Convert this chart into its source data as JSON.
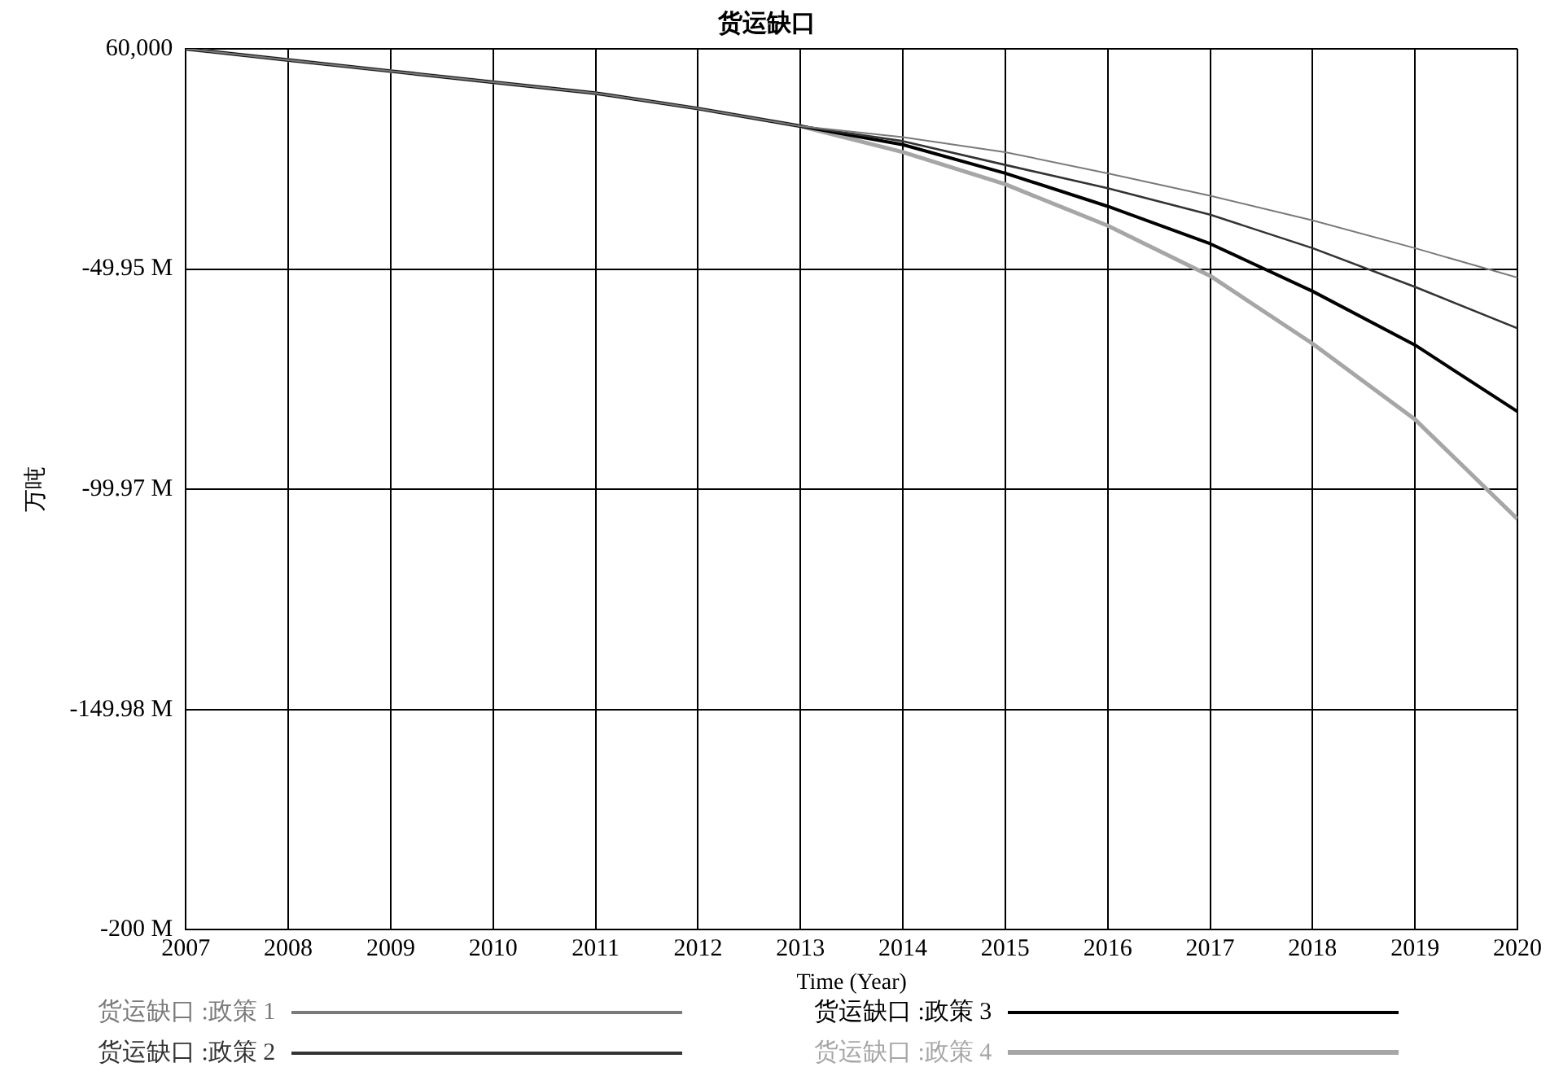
{
  "chart_data": {
    "type": "line",
    "title": "货运缺口",
    "xlabel": "Time (Year)",
    "ylabel": "万吨",
    "x": [
      2007,
      2008,
      2009,
      2010,
      2011,
      2012,
      2013,
      2014,
      2015,
      2016,
      2017,
      2018,
      2019,
      2020
    ],
    "series": [
      {
        "name": "货运缺口 :政策 1",
        "color": "#7a7a7a",
        "values": [
          60000,
          -2500000,
          -5000000,
          -7500000,
          -10000000,
          -13500000,
          -17500000,
          -20000000,
          -23400000,
          -28200000,
          -33300000,
          -38900000,
          -45200000,
          -51900000
        ]
      },
      {
        "name": "货运缺口 :政策 2",
        "color": "#333333",
        "values": [
          60000,
          -2500000,
          -5000000,
          -7500000,
          -10000000,
          -13500000,
          -17500000,
          -20900000,
          -26300000,
          -31600000,
          -37600000,
          -45200000,
          -54000000,
          -63400000
        ]
      },
      {
        "name": "货运缺口 :政策 3",
        "color": "#000000",
        "values": [
          60000,
          -2500000,
          -5000000,
          -7500000,
          -10000000,
          -13500000,
          -17500000,
          -21700000,
          -28200000,
          -35700000,
          -44200000,
          -55000000,
          -67200000,
          -82300000
        ]
      },
      {
        "name": "货运缺口 :政策 4",
        "color": "#a6a6a6",
        "values": [
          60000,
          -2500000,
          -5000000,
          -7500000,
          -10000000,
          -13500000,
          -17500000,
          -23400000,
          -30700000,
          -40100000,
          -51500000,
          -66900000,
          -84100000,
          -106700000
        ]
      }
    ],
    "xlim": [
      2007,
      2020
    ],
    "xticks": [
      2007,
      2008,
      2009,
      2010,
      2011,
      2012,
      2013,
      2014,
      2015,
      2016,
      2017,
      2018,
      2019,
      2020
    ],
    "ylim": [
      -200000000,
      60000
    ],
    "yticks": [
      {
        "value": 60000,
        "label": "60,000"
      },
      {
        "value": -49955000,
        "label": "-49.95 M"
      },
      {
        "value": -99970000,
        "label": "-99.97 M"
      },
      {
        "value": -149985000,
        "label": "-149.98 M"
      },
      {
        "value": -200000000,
        "label": "-200 M"
      }
    ],
    "grid": true,
    "legend": "bottom",
    "marker": "none",
    "line_style": "solid"
  }
}
